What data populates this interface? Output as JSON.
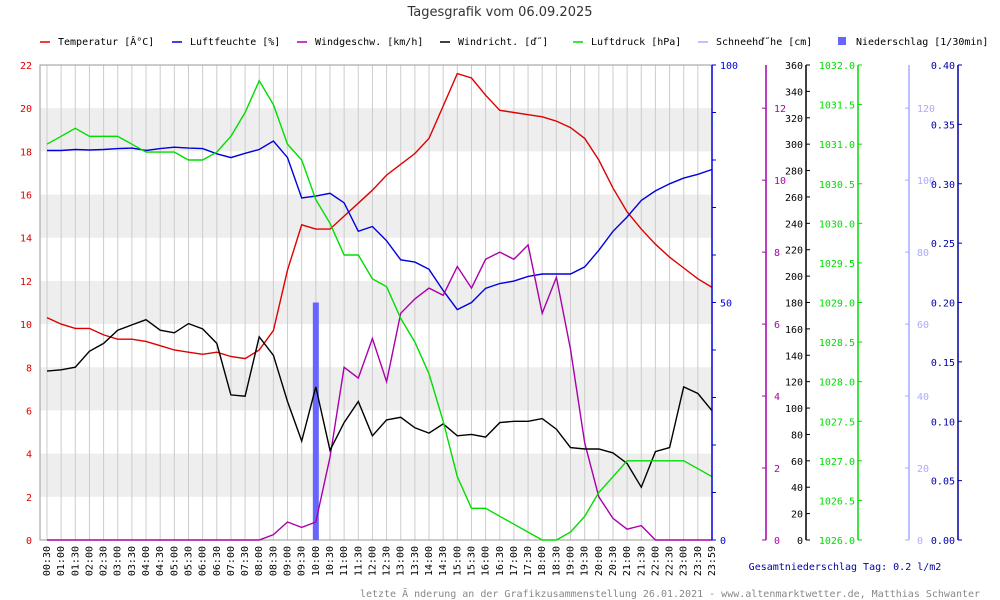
{
  "chart_data": {
    "type": "line",
    "title": "Tagesgrafik vom 06.09.2025",
    "x": [
      "00:30",
      "01:00",
      "01:30",
      "02:00",
      "02:30",
      "03:00",
      "03:30",
      "04:00",
      "04:30",
      "05:00",
      "05:30",
      "06:00",
      "06:30",
      "07:00",
      "07:30",
      "08:00",
      "08:30",
      "09:00",
      "09:30",
      "10:00",
      "10:30",
      "11:00",
      "11:30",
      "12:00",
      "12:30",
      "13:00",
      "13:30",
      "14:00",
      "14:30",
      "15:00",
      "15:30",
      "16:00",
      "16:30",
      "17:00",
      "17:30",
      "18:00",
      "18:30",
      "19:00",
      "19:30",
      "20:00",
      "20:30",
      "21:00",
      "21:30",
      "22:00",
      "22:30",
      "23:00",
      "23:30",
      "23:59"
    ],
    "series": [
      {
        "name": "Temperatur [Â°C]",
        "color": "#dd0000",
        "axis": "temp",
        "values": [
          10.3,
          10.0,
          9.8,
          9.8,
          9.5,
          9.3,
          9.3,
          9.2,
          9.0,
          8.8,
          8.7,
          8.6,
          8.7,
          8.5,
          8.4,
          8.8,
          9.7,
          12.5,
          14.6,
          14.4,
          14.4,
          15.0,
          15.6,
          16.2,
          16.9,
          17.4,
          17.9,
          18.6,
          20.1,
          21.6,
          21.4,
          20.6,
          19.9,
          19.8,
          19.7,
          19.6,
          19.4,
          19.1,
          18.6,
          17.6,
          16.3,
          15.2,
          14.4,
          13.7,
          13.1,
          12.6,
          12.1,
          11.7
        ]
      },
      {
        "name": "Luftfeuchte [%]",
        "color": "#0000dd",
        "axis": "hum",
        "values": [
          82,
          82,
          82.2,
          82.1,
          82.2,
          82.4,
          82.5,
          82.0,
          82.4,
          82.7,
          82.5,
          82.4,
          81.3,
          80.5,
          81.4,
          82.2,
          84.0,
          80.5,
          72.0,
          72.4,
          73.0,
          71.0,
          65.0,
          66.0,
          63.0,
          59.0,
          58.5,
          57.0,
          52.5,
          48.5,
          50.0,
          53.0,
          54.0,
          54.5,
          55.5,
          56.0,
          56.0,
          56.0,
          57.5,
          61.0,
          65.0,
          68.0,
          71.5,
          73.5,
          75.0,
          76.2,
          77.0,
          78.0
        ]
      },
      {
        "name": "Windgeschw. [km/h]",
        "color": "#aa00aa",
        "axis": "wind",
        "values": [
          0,
          0,
          0,
          0,
          0,
          0,
          0,
          0,
          0,
          0,
          0,
          0,
          0,
          0,
          0,
          0,
          0.15,
          0.5,
          0.35,
          0.5,
          2.3,
          4.8,
          4.5,
          5.6,
          4.4,
          6.3,
          6.7,
          7.0,
          6.8,
          7.6,
          7.0,
          7.8,
          8.0,
          7.8,
          8.2,
          6.3,
          7.3,
          5.3,
          2.7,
          1.2,
          0.6,
          0.3,
          0.4,
          0,
          0,
          0,
          0,
          0
        ]
      },
      {
        "name": "Windricht. [Â°]",
        "color": "#000000",
        "axis": "dir",
        "values": [
          128,
          129,
          131,
          143,
          149,
          159,
          163,
          167,
          159,
          157,
          164,
          160,
          149,
          110,
          109,
          154,
          140,
          105,
          75,
          116,
          68,
          89,
          105,
          79,
          91,
          93,
          85,
          81,
          88,
          79,
          80,
          78,
          89,
          90,
          90,
          92,
          84,
          70,
          69,
          69,
          66,
          58,
          40,
          67,
          70,
          116,
          111,
          98
        ]
      },
      {
        "name": "Luftdruck [hPa]",
        "color": "#00dd00",
        "axis": "press",
        "values": [
          1031.0,
          1031.1,
          1031.2,
          1031.1,
          1031.1,
          1031.1,
          1031.0,
          1030.9,
          1030.9,
          1030.9,
          1030.8,
          1030.8,
          1030.9,
          1031.1,
          1031.4,
          1031.8,
          1031.5,
          1031.0,
          1030.8,
          1030.3,
          1030.0,
          1029.6,
          1029.6,
          1029.3,
          1029.2,
          1028.8,
          1028.5,
          1028.1,
          1027.5,
          1026.8,
          1026.4,
          1026.4,
          1026.3,
          1026.2,
          1026.1,
          1026.0,
          1026.0,
          1026.1,
          1026.3,
          1026.6,
          1026.8,
          1027.0,
          1027.0,
          1027.0,
          1027.0,
          1027.0,
          1026.9,
          1026.8
        ]
      }
    ],
    "precip_bar": {
      "name": "Niederschlag [1/30min]",
      "color": "#6666ff",
      "x": "10:00",
      "value": 0.2
    },
    "snow_label": "Schneehöhe [cm]",
    "snow_label_raw": "Schneehď˝he [cm]",
    "legend": [
      {
        "label": "Temperatur [Â°C]",
        "color": "#dd0000",
        "style": "line"
      },
      {
        "label": "Luftfeuchte [%]",
        "color": "#0000dd",
        "style": "line"
      },
      {
        "label": "Windgeschw. [km/h]",
        "color": "#aa00aa",
        "style": "line"
      },
      {
        "label": "Windricht. [ď˝]",
        "color": "#000000",
        "style": "line"
      },
      {
        "label": "Luftdruck [hPa]",
        "color": "#00dd00",
        "style": "line"
      },
      {
        "label": "Schneehď˝he [cm]",
        "color": "#aaaaff",
        "style": "line"
      },
      {
        "label": "Niederschlag [1/30min]",
        "color": "#6666ff",
        "style": "box"
      }
    ],
    "axes": {
      "temp": {
        "ticks": [
          "0",
          "2",
          "4",
          "6",
          "8",
          "10",
          "12",
          "14",
          "16",
          "18",
          "20",
          "22"
        ],
        "min": 0,
        "max": 22,
        "color": "#dd0000"
      },
      "hum": {
        "ticks": [
          "0",
          "50",
          "100"
        ],
        "min": 0,
        "max": 100,
        "color": "#0000dd"
      },
      "wind": {
        "ticks": [
          "0",
          "2",
          "4",
          "6",
          "8",
          "10",
          "12"
        ],
        "min": 0,
        "max": 13.2,
        "color": "#aa00aa"
      },
      "dir": {
        "ticks": [
          "0",
          "20",
          "40",
          "60",
          "80",
          "100",
          "120",
          "140",
          "160",
          "180",
          "200",
          "220",
          "240",
          "260",
          "280",
          "300",
          "320",
          "340",
          "360"
        ],
        "min": 0,
        "max": 360,
        "color": "#000000"
      },
      "press": {
        "ticks": [
          "1026.0",
          "1026.5",
          "1027.0",
          "1027.5",
          "1028.0",
          "1028.5",
          "1029.0",
          "1029.5",
          "1030.0",
          "1030.5",
          "1031.0",
          "1031.5",
          "1032.0"
        ],
        "min": 1026,
        "max": 1032,
        "color": "#00dd00"
      },
      "snow": {
        "ticks": [
          "0",
          "20",
          "40",
          "60",
          "80",
          "100",
          "120"
        ],
        "min": 0,
        "max": 132,
        "color": "#aaaaff"
      },
      "rain": {
        "ticks": [
          "0.00",
          "0.05",
          "0.10",
          "0.15",
          "0.20",
          "0.25",
          "0.30",
          "0.35",
          "0.40"
        ],
        "min": 0,
        "max": 0.4,
        "color": "#0000aa"
      }
    },
    "grid": true
  },
  "footer": {
    "total": "Gesamtniederschlag Tag: 0.2 l/m2",
    "credit": "letzte Ã nderung an der Grafikzusammenstellung 26.01.2021 - www.altenmarktwetter.de, Matthias Schwanter"
  }
}
